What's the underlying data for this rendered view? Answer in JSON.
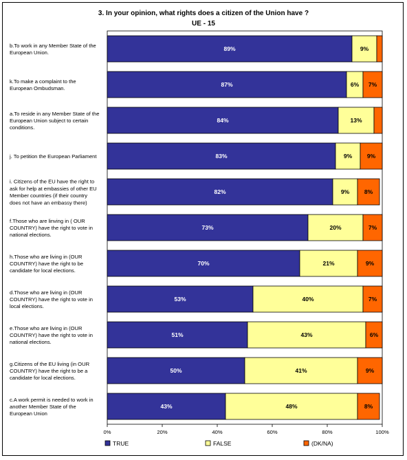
{
  "chart_data": {
    "type": "bar",
    "stacked": true,
    "orientation": "horizontal",
    "title": "3. In your opinion, what rights does a citizen of the Union have ?",
    "subtitle": "UE - 15",
    "categories": [
      [
        "b.To work in any Member State of the",
        "European Union."
      ],
      [
        "k.To make a complaint to the",
        "European Ombudsman."
      ],
      [
        "a.To reside in any Member State of the",
        "European Union subject to certain",
        "conditions."
      ],
      [
        "j. To petition the European Parliament"
      ],
      [
        "i. Citizens of the EU have the right to",
        "ask for help at embassies of other EU",
        "Member countries  (if their country",
        "does not have an embassy there)"
      ],
      [
        "f.Those who are linving in ( OUR",
        "COUNTRY) have the right to vote in",
        "national elections."
      ],
      [
        "h.Those who are living in (OUR",
        "COUNTRY) have the right to be",
        "candidate for local elections."
      ],
      [
        "d.Those who are living in (OUR",
        "COUNTRY) have the right to vote in",
        "local elections."
      ],
      [
        "e.Those who are living in (OUR",
        "COUNTRY) have the right to vote in",
        "national elections."
      ],
      [
        "g.Citizens of the EU living (in OUR",
        "COUNTRY) have the right to be a",
        "candidate for local elections."
      ],
      [
        "c.A work permit is needed to work in",
        "another Member State of the",
        "European Union"
      ]
    ],
    "series": [
      {
        "name": "TRUE",
        "color": "#333399",
        "label_color": "#ffffff",
        "values": [
          89,
          87,
          84,
          83,
          82,
          73,
          70,
          53,
          51,
          50,
          43
        ],
        "labels": [
          "89%",
          "87%",
          "84%",
          "83%",
          "82%",
          "73%",
          "70%",
          "53%",
          "51%",
          "50%",
          "43%"
        ]
      },
      {
        "name": "FALSE",
        "color": "#ffff99",
        "label_color": "#000000",
        "values": [
          9,
          6,
          13,
          9,
          9,
          20,
          21,
          40,
          43,
          41,
          48
        ],
        "labels": [
          "9%",
          "6%",
          "13%",
          "9%",
          "9%",
          "20%",
          "21%",
          "40%",
          "43%",
          "41%",
          "48%"
        ]
      },
      {
        "name": "(DK/NA)",
        "color": "#ff6600",
        "label_color": "#000000",
        "values": [
          2,
          7,
          3,
          9,
          8,
          7,
          9,
          7,
          6,
          9,
          8
        ],
        "labels": [
          "",
          "7%",
          "",
          "9%",
          "8%",
          "7%",
          "9%",
          "7%",
          "6%",
          "9%",
          "8%"
        ]
      }
    ],
    "xlim": [
      0,
      100
    ],
    "xticks": [
      "0%",
      "20%",
      "40%",
      "60%",
      "80%",
      "100%"
    ],
    "grid": false,
    "legend": "bottom"
  }
}
